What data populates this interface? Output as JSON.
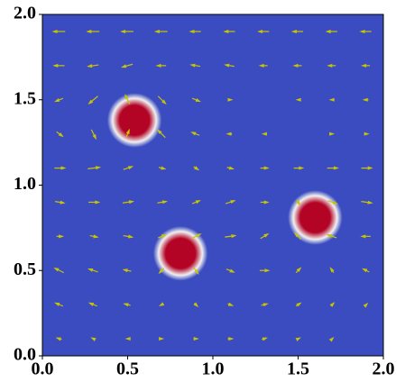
{
  "chart_data": {
    "type": "heatmap",
    "xlim": [
      0,
      2
    ],
    "ylim": [
      0,
      2
    ],
    "xticks": [
      {
        "value": 0,
        "label": "0.0"
      },
      {
        "value": 0.5,
        "label": "0.5"
      },
      {
        "value": 1,
        "label": "1.0"
      },
      {
        "value": 1.5,
        "label": "1.5"
      },
      {
        "value": 2,
        "label": "2.0"
      }
    ],
    "yticks": [
      {
        "value": 0,
        "label": "0.0"
      },
      {
        "value": 0.5,
        "label": "0.5"
      },
      {
        "value": 1,
        "label": "1.0"
      },
      {
        "value": 1.5,
        "label": "1.5"
      },
      {
        "value": 2,
        "label": "2.0"
      }
    ],
    "colors": {
      "low": "#3b4cc0",
      "mid": "#f0f0f0",
      "high": "#b40426"
    },
    "sources": [
      {
        "x": 0.54,
        "y": 1.38,
        "r": 0.16
      },
      {
        "x": 0.81,
        "y": 0.6,
        "r": 0.16
      },
      {
        "x": 1.6,
        "y": 0.81,
        "r": 0.16
      }
    ],
    "quiver": {
      "color": "#c8c400",
      "x": [
        0.1,
        0.3,
        0.5,
        0.7,
        0.9,
        1.1,
        1.3,
        1.5,
        1.7,
        1.9
      ],
      "y": [
        0.1,
        0.3,
        0.5,
        0.7,
        0.9,
        1.1,
        1.3,
        1.5,
        1.7,
        1.9
      ],
      "u": [
        [
          -0.3,
          -0.2,
          -0.1,
          0.1,
          0.2,
          0.3,
          0.3,
          0.2,
          0.1,
          0
        ],
        [
          -0.5,
          -0.5,
          -0.4,
          -0.2,
          0.2,
          0.3,
          0.4,
          0.3,
          0.2,
          0.1
        ],
        [
          -0.6,
          -0.6,
          -0.5,
          -0.3,
          0.3,
          0.5,
          0.6,
          0.3,
          -0.2,
          -0.4
        ],
        [
          0.4,
          0.5,
          0.6,
          0.5,
          0.6,
          0.7,
          0.5,
          -0.4,
          -0.6,
          -0.6
        ],
        [
          0.6,
          0.7,
          0.7,
          0.6,
          0.5,
          0.6,
          0.5,
          0.2,
          0.6,
          0.7
        ],
        [
          0.7,
          0.8,
          0.6,
          0.4,
          0.3,
          0.4,
          0.5,
          0.6,
          0.7,
          0.7
        ],
        [
          0.4,
          0.3,
          0.2,
          -0.5,
          -0.5,
          -0.3,
          -0.1,
          0,
          0.1,
          0.2
        ],
        [
          -0.5,
          -0.6,
          -0.3,
          0.5,
          0.5,
          0.2,
          0,
          -0.1,
          -0.2,
          -0.3
        ],
        [
          -0.7,
          -0.7,
          -0.7,
          -0.6,
          -0.6,
          -0.6,
          -0.5,
          -0.5,
          -0.5,
          -0.5
        ],
        [
          -0.8,
          -0.8,
          -0.8,
          -0.8,
          -0.7,
          -0.7,
          -0.7,
          -0.7,
          -0.7,
          -0.7
        ]
      ],
      "v": [
        [
          0.1,
          0.1,
          0,
          0,
          0,
          0,
          0.1,
          0.1,
          0.1,
          0
        ],
        [
          0.2,
          0.2,
          0.1,
          -0.1,
          -0.2,
          -0.1,
          0.1,
          0.2,
          0.2,
          0.1
        ],
        [
          0.3,
          0.2,
          0.1,
          -0.3,
          -0.4,
          -0.2,
          0,
          0.3,
          0.3,
          0.2
        ],
        [
          0,
          -0.1,
          -0.1,
          0.2,
          0.3,
          0.1,
          0.3,
          0.4,
          0.2,
          0
        ],
        [
          -0.1,
          0,
          0.1,
          0.1,
          0.2,
          0.2,
          0,
          -0.3,
          -0.2,
          -0.1
        ],
        [
          0,
          0.1,
          0.2,
          -0.1,
          -0.2,
          -0.1,
          0,
          0,
          0,
          0
        ],
        [
          -0.3,
          -0.6,
          0.5,
          0.5,
          0.2,
          0,
          0,
          0,
          0,
          0
        ],
        [
          -0.2,
          -0.5,
          0.6,
          -0.5,
          -0.2,
          0,
          0,
          0,
          0,
          0
        ],
        [
          0,
          -0.1,
          -0.2,
          0,
          0.1,
          0.1,
          0,
          0,
          0,
          0
        ],
        [
          0,
          0,
          0,
          0,
          0,
          0,
          0,
          0,
          0,
          0
        ]
      ]
    }
  }
}
